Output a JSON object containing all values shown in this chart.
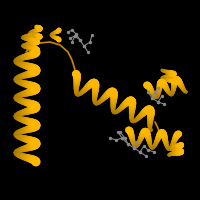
{
  "background_color": "#000000",
  "helix_color": "#FFB800",
  "helix_color_dark": "#CC8800",
  "ligand_color": "#888888",
  "fig_width": 2.0,
  "fig_height": 2.0,
  "dpi": 100
}
